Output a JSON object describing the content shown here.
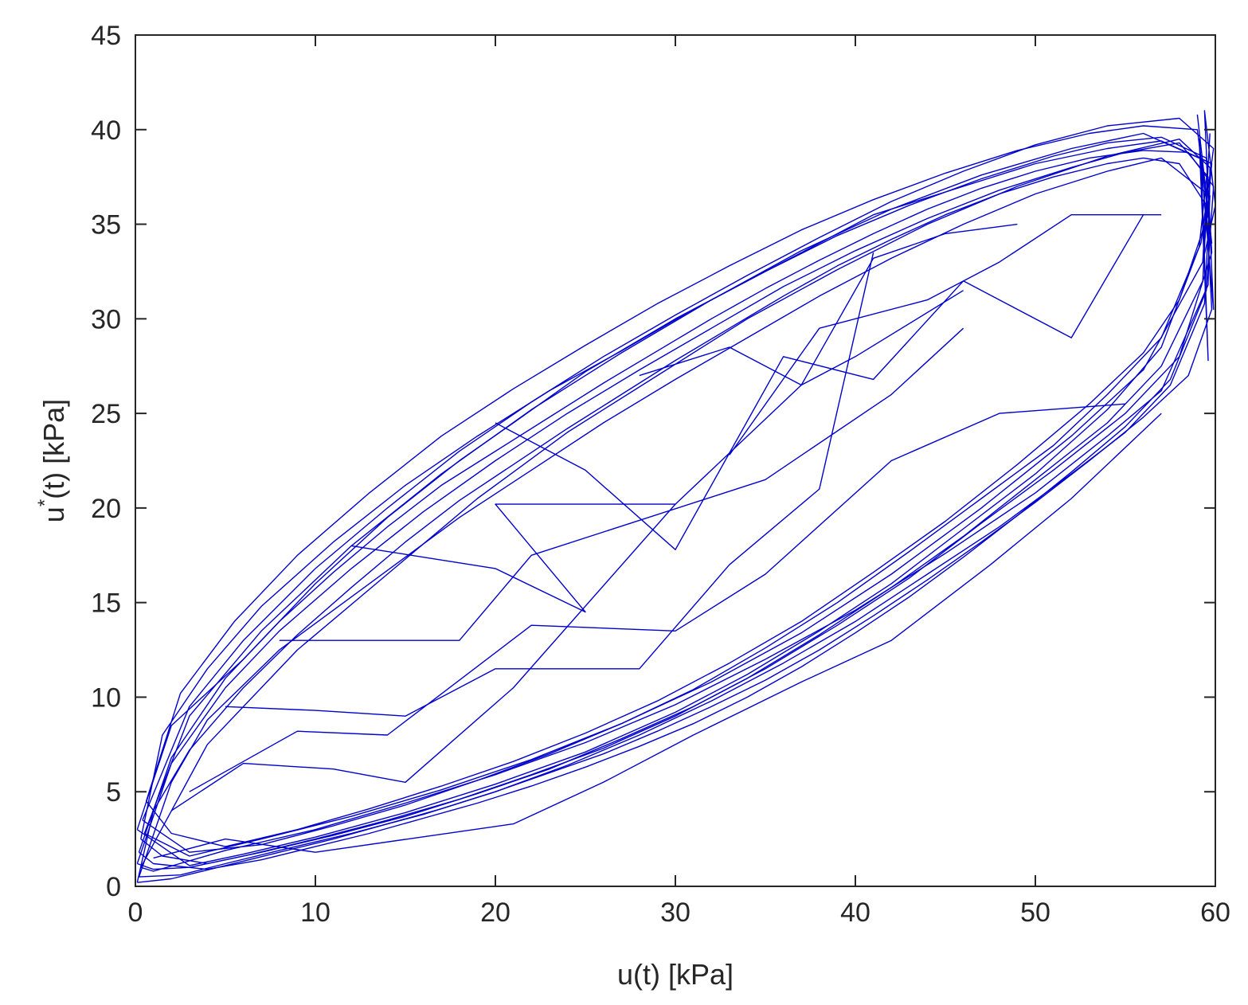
{
  "chart_data": {
    "type": "line",
    "title": "",
    "xlabel": "u(t) [kPa]",
    "ylabel_main": "u",
    "ylabel_superscript": "*",
    "ylabel_rest": "(t) [kPa]",
    "xlim": [
      0,
      60
    ],
    "ylim": [
      0,
      45
    ],
    "xticks": [
      0,
      10,
      20,
      30,
      40,
      50,
      60
    ],
    "yticks": [
      0,
      5,
      10,
      15,
      20,
      25,
      30,
      35,
      40,
      45
    ],
    "xtick_labels": [
      "0",
      "10",
      "20",
      "30",
      "40",
      "50",
      "60"
    ],
    "ytick_labels": [
      "0",
      "5",
      "10",
      "15",
      "20",
      "25",
      "30",
      "35",
      "40",
      "45"
    ],
    "grid": false,
    "legend": "none",
    "line_color": "#0000cc",
    "series": [
      {
        "description_note": "",
        "x": [
          0.1,
          2,
          5,
          8,
          12,
          16,
          20,
          24,
          28,
          32,
          36,
          40,
          44,
          48,
          52,
          55,
          58,
          59.6,
          59.3,
          57,
          54,
          50,
          46,
          42,
          38,
          34,
          30,
          26,
          22,
          18,
          14,
          10,
          6,
          3,
          1,
          0.1
        ],
        "y": [
          1.2,
          6.5,
          10.5,
          13.5,
          16.8,
          19.8,
          22.5,
          25.0,
          27.3,
          29.5,
          31.7,
          33.6,
          35.3,
          36.8,
          38.0,
          38.8,
          39.3,
          37.5,
          32.0,
          27.5,
          24.5,
          21.5,
          18.5,
          15.8,
          13.3,
          11.0,
          9.0,
          7.3,
          5.9,
          4.6,
          3.5,
          2.5,
          1.6,
          1.0,
          0.9,
          1.2
        ]
      },
      {
        "description_note": "",
        "x": [
          0.3,
          1.5,
          4,
          7,
          11,
          15,
          19,
          23,
          27,
          31,
          35,
          39,
          43,
          47,
          51,
          54,
          57,
          59.5,
          59.8,
          58,
          55,
          51,
          47,
          43,
          39,
          35,
          31,
          27,
          23,
          19,
          15,
          11,
          7,
          4,
          1.5,
          0.3
        ],
        "y": [
          2.5,
          8.0,
          11.5,
          14.8,
          18.2,
          21.2,
          23.8,
          26.2,
          28.3,
          30.5,
          32.5,
          34.4,
          36.0,
          37.4,
          38.6,
          39.3,
          39.6,
          38.5,
          33.5,
          28.0,
          25.0,
          22.0,
          19.2,
          16.3,
          13.8,
          11.5,
          9.5,
          7.8,
          6.2,
          4.9,
          3.7,
          2.7,
          1.8,
          1.2,
          1.6,
          2.5
        ]
      },
      {
        "description_note": "",
        "x": [
          0.2,
          2,
          4,
          8,
          13,
          18,
          22,
          26,
          30,
          34,
          38,
          42,
          46,
          50,
          54,
          57,
          59.7,
          59.4,
          57.5,
          55,
          52,
          48,
          44,
          40,
          36,
          32,
          28,
          24,
          20,
          16,
          12,
          8,
          5,
          2.5,
          0.2
        ],
        "y": [
          0.5,
          5.5,
          8.8,
          12.5,
          16.0,
          19.5,
          22.0,
          24.5,
          26.8,
          29.0,
          31.2,
          33.2,
          35.0,
          36.6,
          37.8,
          38.5,
          36.5,
          30.8,
          26.5,
          24.0,
          21.8,
          19.0,
          16.5,
          14.0,
          11.8,
          9.8,
          8.0,
          6.4,
          5.0,
          3.8,
          2.8,
          1.9,
          1.2,
          0.6,
          0.5
        ]
      },
      {
        "description_note": "",
        "x": [
          0.4,
          3,
          6,
          10,
          14,
          18,
          22,
          26,
          30,
          34,
          38,
          42,
          46,
          50,
          54,
          58,
          59.9,
          59.2,
          57,
          54,
          51,
          47,
          43,
          39,
          35,
          31,
          27,
          23,
          19,
          15,
          11,
          7,
          3,
          0.4
        ],
        "y": [
          3.5,
          9.5,
          13.0,
          16.8,
          20.0,
          23.0,
          25.6,
          28.0,
          30.2,
          32.3,
          34.3,
          36.2,
          37.8,
          39.2,
          40.2,
          40.6,
          39.0,
          34.0,
          29.0,
          26.0,
          23.3,
          20.5,
          17.7,
          15.0,
          12.6,
          10.4,
          8.6,
          7.0,
          5.6,
          4.3,
          3.2,
          2.2,
          1.8,
          3.5
        ]
      },
      {
        "description_note": "",
        "x": [
          0.1,
          1,
          3,
          6,
          9,
          12,
          15,
          18,
          21,
          24,
          27,
          30,
          33,
          36,
          39,
          42,
          45,
          48,
          51,
          54,
          56,
          58,
          59.5,
          59.8,
          58.5,
          56,
          53,
          50,
          47,
          44,
          41,
          38,
          35,
          32,
          29,
          26,
          23,
          20,
          17,
          14,
          11,
          8,
          5,
          2,
          0.1
        ],
        "y": [
          0.2,
          4.0,
          7.2,
          10.5,
          13.3,
          15.8,
          18.2,
          20.4,
          22.3,
          24.2,
          26.0,
          27.8,
          29.5,
          31.2,
          32.8,
          34.2,
          35.5,
          36.6,
          37.5,
          38.2,
          38.5,
          38.2,
          36.0,
          30.5,
          27.0,
          24.8,
          22.5,
          20.3,
          18.2,
          16.2,
          14.3,
          12.5,
          10.9,
          9.5,
          8.2,
          7.0,
          6.0,
          5.0,
          4.1,
          3.3,
          2.5,
          1.8,
          1.1,
          0.4,
          0.2
        ]
      },
      {
        "description_note": "",
        "x": [
          0.6,
          2.5,
          5.5,
          9,
          13,
          17,
          21,
          25,
          29,
          33,
          37,
          41,
          45,
          49,
          53,
          56,
          59,
          59.6,
          58,
          56,
          53,
          49,
          45,
          41,
          37,
          33,
          29,
          25,
          21,
          17,
          13,
          9,
          5,
          2,
          0.6
        ],
        "y": [
          4.5,
          10.2,
          14.0,
          17.5,
          20.8,
          23.8,
          26.3,
          28.6,
          30.8,
          32.8,
          34.7,
          36.3,
          37.7,
          38.9,
          39.8,
          40.2,
          40.0,
          35.5,
          31.0,
          28.2,
          25.5,
          22.3,
          19.3,
          16.6,
          14.0,
          11.8,
          9.8,
          8.1,
          6.6,
          5.3,
          4.1,
          3.0,
          2.1,
          2.8,
          4.5
        ]
      },
      {
        "description_note": "",
        "x": [
          0.2,
          2,
          5,
          8,
          11,
          14,
          17,
          20,
          23,
          26,
          29,
          32,
          35,
          38,
          41,
          44,
          47,
          50,
          53,
          56,
          58.5,
          59.9,
          59.5,
          57.5,
          55,
          52,
          49,
          46,
          43,
          40,
          37,
          34,
          31,
          28,
          25,
          22,
          19,
          16,
          13,
          10,
          7,
          4,
          1,
          0.2
        ],
        "y": [
          1.8,
          6.8,
          11.0,
          14.0,
          16.6,
          19.0,
          21.2,
          23.0,
          24.8,
          26.6,
          28.3,
          30.0,
          31.6,
          33.1,
          34.5,
          35.8,
          36.9,
          37.8,
          38.5,
          38.9,
          38.8,
          37.0,
          31.5,
          26.8,
          24.3,
          21.9,
          19.6,
          17.4,
          15.3,
          13.4,
          11.6,
          10.0,
          8.6,
          7.4,
          6.3,
          5.3,
          4.4,
          3.6,
          2.8,
          2.1,
          1.4,
          0.9,
          1.2,
          1.8
        ]
      },
      {
        "description_note": "",
        "x": [
          0.5,
          3,
          7,
          12,
          17,
          22,
          27,
          32,
          37,
          42,
          47,
          52,
          56,
          59.8,
          59.3,
          56,
          52,
          47,
          42,
          37,
          32,
          27,
          22,
          17,
          12,
          7,
          3,
          0.5
        ],
        "y": [
          2.8,
          9.0,
          13.5,
          18.0,
          21.8,
          25.2,
          28.2,
          31.0,
          33.6,
          35.8,
          37.6,
          39.0,
          39.8,
          38.2,
          33.0,
          27.3,
          23.8,
          20.0,
          16.5,
          13.4,
          10.8,
          8.6,
          6.7,
          5.1,
          3.7,
          2.5,
          1.6,
          2.8
        ]
      },
      {
        "description_note": "",
        "x": [
          0.3,
          4,
          9,
          14,
          19,
          24,
          29,
          34,
          39,
          44,
          49,
          54,
          58,
          59.7,
          59.6,
          57,
          54,
          50,
          45,
          40,
          35,
          30,
          25,
          20,
          15,
          10,
          5,
          1,
          0.3
        ],
        "y": [
          1.0,
          7.5,
          12.5,
          16.5,
          20.5,
          24.0,
          27.0,
          30.0,
          32.6,
          35.0,
          37.0,
          38.6,
          39.5,
          38.0,
          31.8,
          26.2,
          23.8,
          20.8,
          17.6,
          14.6,
          12.0,
          9.6,
          7.6,
          5.9,
          4.4,
          3.0,
          1.9,
          0.8,
          1.0
        ]
      },
      {
        "description_note": "",
        "x": [
          0.1,
          2,
          6,
          10,
          14,
          18,
          21,
          25,
          30,
          34,
          38,
          41,
          46,
          50,
          54,
          57,
          59.6,
          59.1,
          57,
          54,
          50,
          46,
          42,
          38,
          34,
          30,
          25,
          20,
          15,
          10,
          6,
          3,
          0.1
        ],
        "y": [
          3.0,
          8.5,
          12.0,
          16.0,
          19.5,
          22.5,
          24.5,
          27.2,
          30.0,
          32.0,
          34.0,
          35.5,
          37.0,
          38.2,
          39.0,
          39.4,
          38.3,
          33.8,
          28.5,
          25.2,
          21.8,
          18.9,
          16.0,
          13.5,
          11.2,
          9.2,
          7.1,
          5.4,
          3.9,
          2.6,
          1.7,
          1.1,
          3.0
        ]
      },
      {
        "description_note": "",
        "x": [
          12,
          20,
          25,
          20,
          30
        ],
        "y": [
          18.0,
          16.8,
          14.5,
          20.2,
          20.2
        ]
      },
      {
        "description_note": "",
        "x": [
          8,
          18,
          22,
          35,
          42,
          46
        ],
        "y": [
          13.0,
          13.0,
          17.5,
          21.5,
          26.0,
          29.5
        ]
      },
      {
        "description_note": "",
        "x": [
          20,
          25,
          30,
          36,
          41,
          46,
          52,
          56
        ],
        "y": [
          24.5,
          22.0,
          17.8,
          28.0,
          26.8,
          32.0,
          29.0,
          35.5
        ]
      },
      {
        "description_note": "",
        "x": [
          5,
          10,
          15,
          20,
          28,
          33,
          38,
          41
        ],
        "y": [
          9.5,
          9.3,
          9.0,
          11.5,
          11.5,
          17.0,
          21.0,
          33.5
        ]
      },
      {
        "description_note": "",
        "x": [
          3,
          9,
          14,
          22,
          30,
          35,
          42,
          48,
          55
        ],
        "y": [
          5.0,
          8.2,
          8.0,
          13.8,
          13.5,
          16.5,
          22.5,
          25.0,
          25.5
        ]
      },
      {
        "description_note": "",
        "x": [
          2,
          6,
          11,
          15,
          21,
          30,
          37,
          40,
          46
        ],
        "y": [
          4.0,
          6.5,
          6.2,
          5.5,
          10.5,
          20.2,
          26.5,
          28.0,
          31.5
        ]
      },
      {
        "description_note": "",
        "x": [
          33,
          38,
          44,
          48,
          52,
          57
        ],
        "y": [
          22.8,
          29.5,
          31.0,
          33.0,
          35.5,
          35.5
        ]
      },
      {
        "description_note": "",
        "x": [
          28,
          33,
          37,
          41,
          45,
          49
        ],
        "y": [
          27.0,
          28.5,
          26.5,
          33.2,
          34.5,
          35.0
        ]
      },
      {
        "description_note": "",
        "x": [
          1,
          5,
          10,
          21,
          26,
          31,
          37,
          42,
          47.5,
          52,
          57
        ],
        "y": [
          1.5,
          2.5,
          1.8,
          3.3,
          5.5,
          8.0,
          10.8,
          13.0,
          17.0,
          20.5,
          25.0
        ]
      },
      {
        "description_note": "",
        "x": [
          59.0,
          59.8,
          59.2,
          59.6,
          59.1,
          59.9,
          59.4,
          60.0,
          59.3,
          59.7
        ],
        "y": [
          40.8,
          34.0,
          38.5,
          27.8,
          39.5,
          30.5,
          41.0,
          36.0,
          33.0,
          39.8
        ]
      }
    ]
  }
}
